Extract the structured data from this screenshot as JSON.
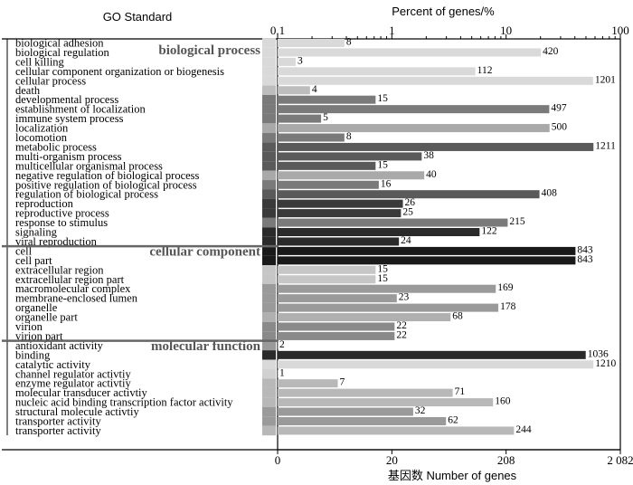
{
  "chart_data": {
    "type": "bar",
    "orientation": "horizontal",
    "left_header": "GO Standard",
    "top_axis": {
      "title": "Percent of genes/%",
      "scale": "log",
      "ticks": [
        "0.1",
        "1",
        "10",
        "100"
      ],
      "range": [
        0.1,
        100
      ]
    },
    "bottom_axis": {
      "title": "基因数 Number of genes",
      "ticks": [
        "0",
        "20",
        "208",
        "2 082"
      ]
    },
    "groups": [
      {
        "name": "biological process",
        "categories": [
          {
            "label": "biological adhesion",
            "count": 8,
            "color": "#d9d9d9"
          },
          {
            "label": "biological regulation",
            "count": 420,
            "color": "#d9d9d9"
          },
          {
            "label": "cell killing",
            "count": 3,
            "color": "#d9d9d9"
          },
          {
            "label": "cellular component organization or biogenesis",
            "count": 112,
            "color": "#d9d9d9"
          },
          {
            "label": "cellular process",
            "count": 1201,
            "color": "#d9d9d9"
          },
          {
            "label": "death",
            "count": 4,
            "color": "#bdbdbd"
          },
          {
            "label": "developmental process",
            "count": 15,
            "color": "#7a7a7a"
          },
          {
            "label": "establishment  of  localization",
            "count": 497,
            "color": "#7a7a7a"
          },
          {
            "label": "immune system process",
            "count": 5,
            "color": "#7a7a7a"
          },
          {
            "label": "localization",
            "count": 500,
            "color": "#a9a9a9"
          },
          {
            "label": "locomotion",
            "count": 8,
            "color": "#7a7a7a"
          },
          {
            "label": "metabolic process",
            "count": 1211,
            "color": "#5a5a5a"
          },
          {
            "label": "multi-organism process",
            "count": 38,
            "color": "#5a5a5a"
          },
          {
            "label": "multicellular organismal process",
            "count": 15,
            "color": "#5a5a5a"
          },
          {
            "label": "negative regulation of biological process",
            "count": 40,
            "color": "#a9a9a9"
          },
          {
            "label": "positive regulation of biological process",
            "count": 16,
            "color": "#7a7a7a"
          },
          {
            "label": "regulation of biological process",
            "count": 408,
            "color": "#5a5a5a"
          },
          {
            "label": "reproduction",
            "count": 26,
            "color": "#3a3a3a"
          },
          {
            "label": "reproductive process",
            "count": 25,
            "color": "#3a3a3a"
          },
          {
            "label": "response to stimulus",
            "count": 215,
            "color": "#7a7a7a"
          },
          {
            "label": "signaling",
            "count": 122,
            "color": "#2a2a2a"
          },
          {
            "label": "viral reproduction",
            "count": 24,
            "color": "#2a2a2a"
          }
        ]
      },
      {
        "name": "cellular component",
        "categories": [
          {
            "label": "cell",
            "count": 843,
            "color": "#1a1a1a"
          },
          {
            "label": "cell part",
            "count": 843,
            "color": "#1a1a1a"
          },
          {
            "label": "extracellular region",
            "count": 15,
            "color": "#c6c6c6"
          },
          {
            "label": "extracellular region part",
            "count": 15,
            "color": "#c6c6c6"
          },
          {
            "label": "macromolecular complex",
            "count": 169,
            "color": "#9a9a9a"
          },
          {
            "label": "membrane-enclosed lumen",
            "count": 23,
            "color": "#9a9a9a"
          },
          {
            "label": "organelle",
            "count": 178,
            "color": "#9a9a9a"
          },
          {
            "label": "organelle part",
            "count": 68,
            "color": "#b0b0b0"
          },
          {
            "label": "virion",
            "count": 22,
            "color": "#8a8a8a"
          },
          {
            "label": "virion part",
            "count": 22,
            "color": "#8a8a8a"
          }
        ]
      },
      {
        "name": "molecular function",
        "categories": [
          {
            "label": "antioxidant activity",
            "count": 2,
            "color": "#9a9a9a"
          },
          {
            "label": "binding",
            "count": 1036,
            "color": "#2a2a2a"
          },
          {
            "label": "catalytic activity",
            "count": 1210,
            "color": "#d9d9d9"
          },
          {
            "label": "channel regulator activtiy",
            "count": 1,
            "color": "#d0d0d0"
          },
          {
            "label": "enzyme regulator activtiy",
            "count": 7,
            "color": "#b8b8b8"
          },
          {
            "label": "molecular transducer activtiy",
            "count": 71,
            "color": "#b8b8b8"
          },
          {
            "label": "nucleic acid binding transcription factor activity",
            "count": 160,
            "color": "#b8b8b8"
          },
          {
            "label": "structural molecule activtiy",
            "count": 32,
            "color": "#9a9a9a"
          },
          {
            "label": "transporter activity",
            "count": 62,
            "color": "#9a9a9a"
          },
          {
            "label": "transporter activity",
            "count": 244,
            "color": "#b8b8b8"
          }
        ]
      }
    ]
  }
}
